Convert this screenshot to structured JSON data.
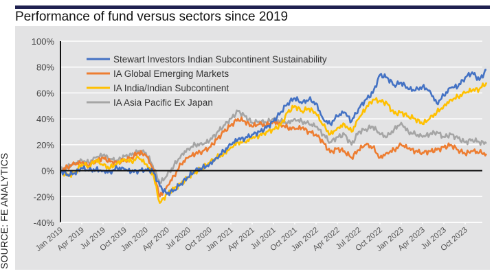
{
  "title": "Performance of fund versus sectors since 2019",
  "source": "SOURCE:  FE ANALYTICS",
  "chart_data": {
    "type": "line",
    "title": "Performance of fund versus sectors since 2019",
    "xlabel": "",
    "ylabel": "",
    "ylim": [
      -40,
      100
    ],
    "yticks": [
      -40,
      -20,
      0,
      20,
      40,
      60,
      80,
      100
    ],
    "ytick_labels": [
      "-40%",
      "-20%",
      "0%",
      "20%",
      "40%",
      "60%",
      "80%",
      "100%"
    ],
    "xticks": [
      "Jan 2019",
      "Apr 2019",
      "Jul 2019",
      "Oct 2019",
      "Jan 2020",
      "Apr 2020",
      "Jul 2020",
      "Oct 2020",
      "Jan 2021",
      "Apr 2021",
      "Jul 2021",
      "Oct 2021",
      "Jan 2022",
      "Apr 2022",
      "Jul 2022",
      "Oct 2022",
      "Jan 2023",
      "Apr 2023",
      "Jul 2023",
      "Oct 2023"
    ],
    "grid": "horizontal",
    "legend_position": "top-left",
    "x": [
      "2019-01",
      "2019-02",
      "2019-03",
      "2019-04",
      "2019-05",
      "2019-06",
      "2019-07",
      "2019-08",
      "2019-09",
      "2019-10",
      "2019-11",
      "2019-12",
      "2020-01",
      "2020-02",
      "2020-03",
      "2020-04",
      "2020-05",
      "2020-06",
      "2020-07",
      "2020-08",
      "2020-09",
      "2020-10",
      "2020-11",
      "2020-12",
      "2021-01",
      "2021-02",
      "2021-03",
      "2021-04",
      "2021-05",
      "2021-06",
      "2021-07",
      "2021-08",
      "2021-09",
      "2021-10",
      "2021-11",
      "2021-12",
      "2022-01",
      "2022-02",
      "2022-03",
      "2022-04",
      "2022-05",
      "2022-06",
      "2022-07",
      "2022-08",
      "2022-09",
      "2022-10",
      "2022-11",
      "2022-12",
      "2023-01",
      "2023-02",
      "2023-03",
      "2023-04",
      "2023-05",
      "2023-06",
      "2023-07",
      "2023-08",
      "2023-09",
      "2023-10",
      "2023-11",
      "2023-12",
      "2024-01"
    ],
    "series": [
      {
        "name": "Stewart Investors Indian Subcontinent Sustainability",
        "color": "#4472c4",
        "values": [
          0,
          -3,
          -2,
          2,
          0,
          1,
          0,
          -1,
          2,
          1,
          -1,
          0,
          1,
          0,
          -12,
          -18,
          -15,
          -10,
          -5,
          0,
          2,
          5,
          10,
          15,
          20,
          24,
          25,
          28,
          30,
          33,
          38,
          45,
          52,
          56,
          52,
          55,
          52,
          40,
          36,
          42,
          45,
          38,
          48,
          55,
          60,
          74,
          72,
          66,
          68,
          63,
          62,
          65,
          62,
          52,
          58,
          64,
          65,
          72,
          76,
          70,
          78
        ]
      },
      {
        "name": "IA Global Emerging Markets",
        "color": "#ed7d31",
        "values": [
          0,
          3,
          5,
          6,
          4,
          8,
          10,
          7,
          6,
          8,
          10,
          14,
          12,
          2,
          -20,
          -12,
          -4,
          5,
          10,
          13,
          15,
          18,
          24,
          30,
          35,
          40,
          38,
          34,
          36,
          35,
          38,
          36,
          33,
          32,
          33,
          30,
          28,
          22,
          14,
          17,
          15,
          10,
          16,
          20,
          18,
          10,
          14,
          16,
          20,
          17,
          15,
          14,
          15,
          16,
          18,
          20,
          16,
          13,
          15,
          14,
          13
        ]
      },
      {
        "name": "IA India/Indian Subcontinent",
        "color": "#ffc000",
        "values": [
          0,
          -4,
          -2,
          5,
          3,
          8,
          4,
          2,
          6,
          9,
          7,
          10,
          5,
          -2,
          -25,
          -18,
          -14,
          -10,
          -5,
          -1,
          2,
          6,
          10,
          13,
          18,
          22,
          22,
          25,
          27,
          30,
          32,
          35,
          45,
          50,
          46,
          48,
          44,
          35,
          28,
          33,
          36,
          30,
          40,
          48,
          55,
          54,
          52,
          44,
          45,
          42,
          40,
          36,
          40,
          45,
          50,
          55,
          57,
          60,
          62,
          63,
          68
        ]
      },
      {
        "name": "IA Asia Pacific Ex Japan",
        "color": "#a5a5a5",
        "values": [
          0,
          3,
          6,
          8,
          6,
          10,
          12,
          9,
          8,
          11,
          12,
          15,
          14,
          4,
          -10,
          -4,
          4,
          12,
          17,
          20,
          20,
          23,
          29,
          35,
          40,
          46,
          42,
          37,
          38,
          37,
          40,
          38,
          37,
          40,
          38,
          36,
          34,
          28,
          22,
          26,
          28,
          20,
          30,
          32,
          34,
          28,
          26,
          32,
          37,
          30,
          28,
          26,
          28,
          30,
          26,
          28,
          25,
          22,
          24,
          22,
          21
        ]
      }
    ]
  }
}
